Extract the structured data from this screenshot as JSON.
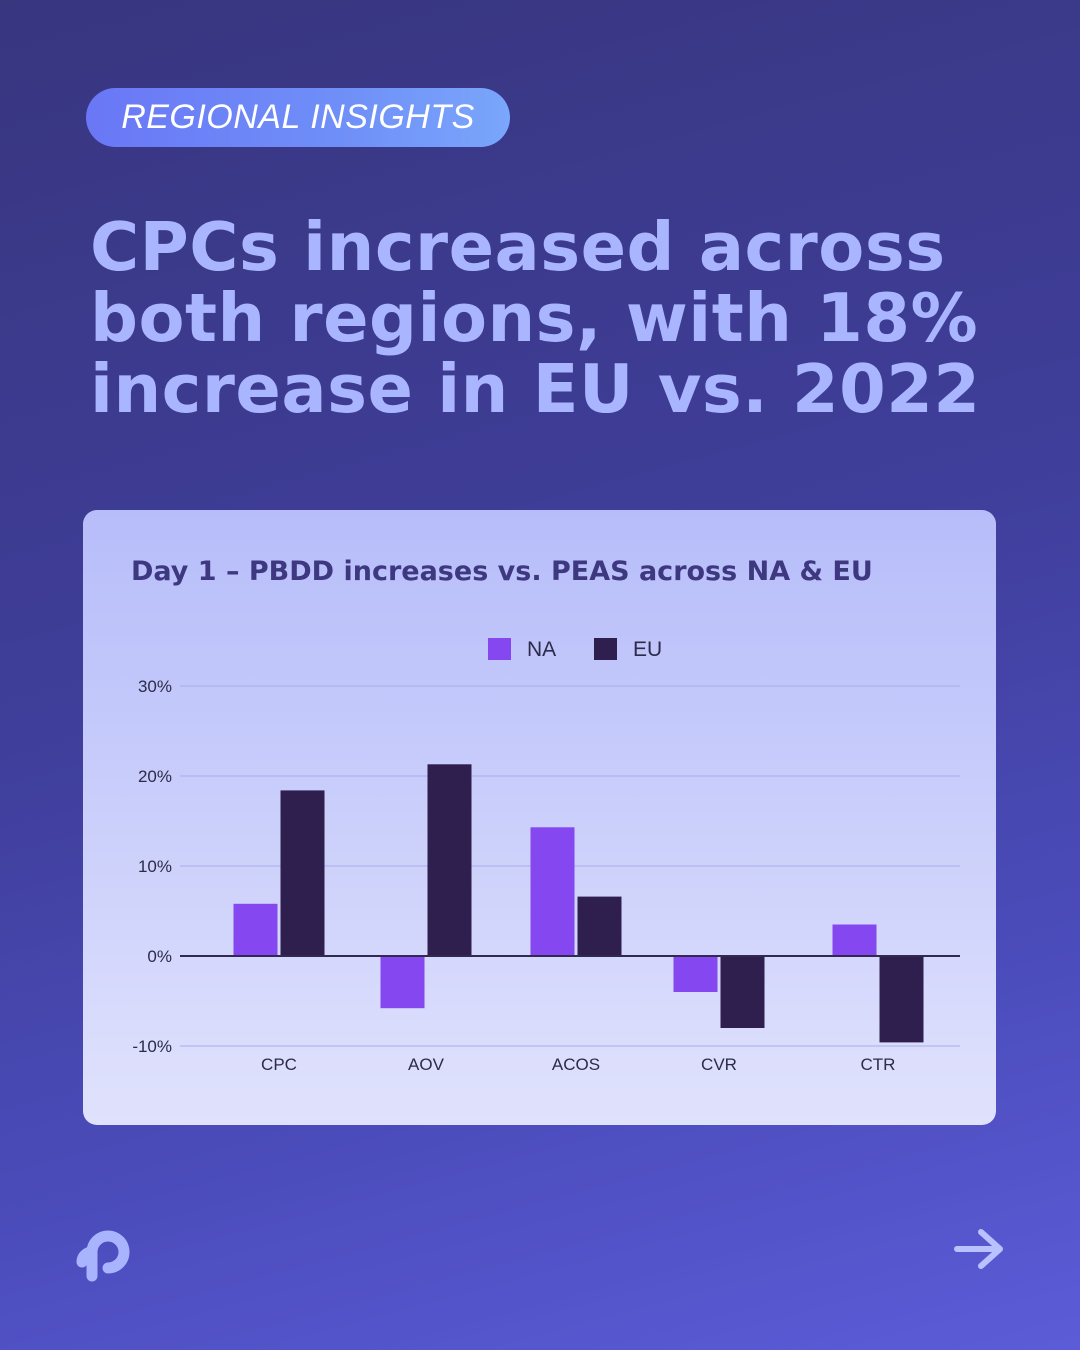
{
  "badge": {
    "label": "REGIONAL INSIGHTS"
  },
  "headline": {
    "line1": "CPCs increased across",
    "line2": "both regions, with 18%",
    "line3": "increase in EU vs. 2022"
  },
  "colors": {
    "na": "#8447f0",
    "eu": "#2f1f4e",
    "grid": "#a9acee",
    "zero_line": "#33294f"
  },
  "icons": {
    "logo": "brand-logo-icon",
    "next": "arrow-right-icon"
  },
  "chart_data": {
    "type": "bar",
    "title": "Day 1 – PBDD increases vs. PEAS across NA & EU",
    "categories": [
      "CPC",
      "AOV",
      "ACOS",
      "CVR",
      "CTR"
    ],
    "series": [
      {
        "name": "NA",
        "values": [
          5.8,
          -5.8,
          14.3,
          -4.0,
          3.5
        ]
      },
      {
        "name": "EU",
        "values": [
          18.4,
          21.3,
          6.6,
          -8.0,
          -9.6
        ]
      }
    ],
    "ylim": [
      -10,
      30
    ],
    "yticks": [
      {
        "value": 30,
        "label": "30%"
      },
      {
        "value": 20,
        "label": "20%"
      },
      {
        "value": 10,
        "label": "10%"
      },
      {
        "value": 0,
        "label": "0%"
      },
      {
        "value": -10,
        "label": "-10%"
      }
    ],
    "xlabel": "",
    "ylabel": "",
    "grid": true,
    "legend": "top-center"
  }
}
